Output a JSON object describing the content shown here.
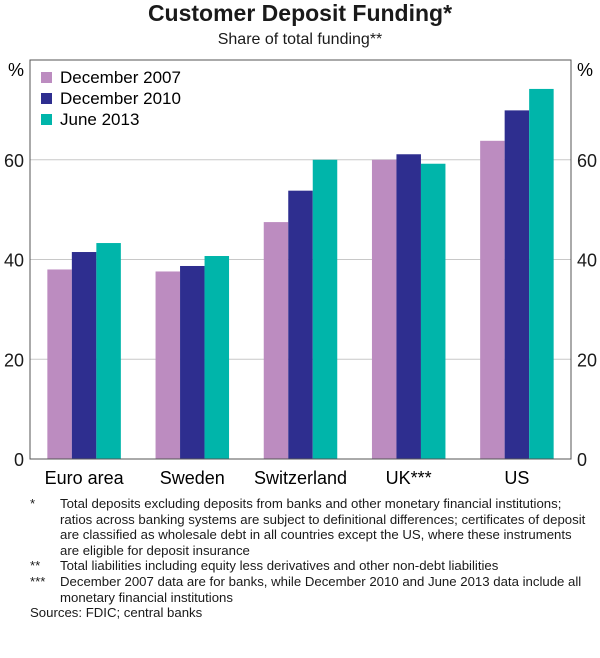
{
  "chart_data": {
    "type": "bar",
    "title": "Customer Deposit Funding*",
    "subtitle": "Share of total funding**",
    "ylabel_left": "%",
    "ylabel_right": "%",
    "ylim": [
      0,
      80
    ],
    "yticks": [
      0,
      20,
      40,
      60
    ],
    "grid": true,
    "legend_position": "top-left",
    "categories": [
      "Euro area",
      "Sweden",
      "Switzerland",
      "UK***",
      "US"
    ],
    "series": [
      {
        "name": "December 2007",
        "color": "#bc8cc0",
        "values": [
          38.0,
          37.6,
          47.5,
          60.0,
          63.8
        ]
      },
      {
        "name": "December 2010",
        "color": "#2e2e8f",
        "values": [
          41.5,
          38.7,
          53.8,
          61.1,
          69.9
        ]
      },
      {
        "name": "June 2013",
        "color": "#00b5aa",
        "values": [
          43.3,
          40.7,
          60.0,
          59.2,
          74.2
        ]
      }
    ]
  },
  "notes": [
    {
      "marker": "*",
      "text": "Total deposits excluding deposits from banks and other monetary financial institutions; ratios across banking systems are subject to definitional differences; certificates of deposit are classified as wholesale debt in all countries except the US, where these instruments are eligible for deposit insurance"
    },
    {
      "marker": "**",
      "text": "Total liabilities including equity less derivatives and other non-debt liabilities"
    },
    {
      "marker": "***",
      "text": "December 2007 data are for banks, while December 2010 and June 2013 data include all monetary financial institutions"
    }
  ],
  "sources": "Sources: FDIC; central banks"
}
